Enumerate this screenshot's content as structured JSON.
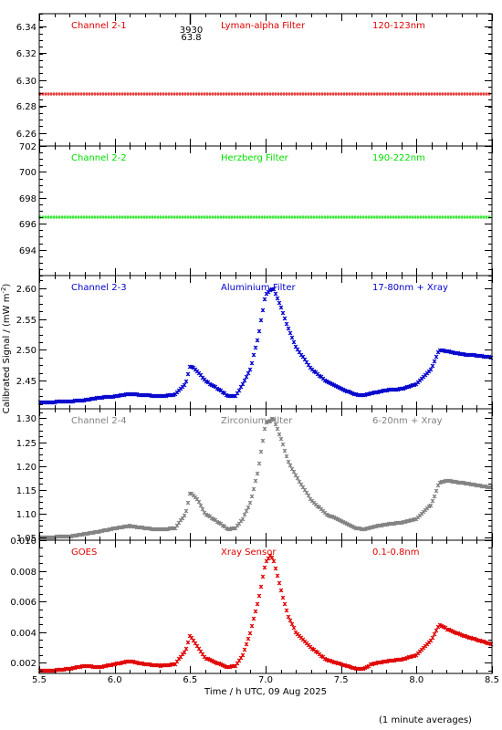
{
  "chart_data": {
    "type": "scatter",
    "xlabel": "Time / h UTC, 09 Aug 2025",
    "ylabel": "Calibrated Signal / (mW m",
    "ylabel_sup": "-2",
    "ylabel_close": ")",
    "footnote": "(1 minute averages)",
    "xlim": [
      5.5,
      8.5
    ],
    "xticks": [
      "5.5",
      "6.0",
      "6.5",
      "7.0",
      "7.5",
      "8.0",
      "8.5"
    ],
    "marker": "*",
    "marker_annotation": {
      "x": 6.5,
      "lines": [
        "3930",
        "63.8"
      ]
    },
    "panels": [
      {
        "channel": "Channel 2-1",
        "filter": "Lyman-alpha Filter",
        "band": "120-123nm",
        "color": "#e00000",
        "ylim": [
          6.25,
          6.35
        ],
        "yticks": [
          "6.26",
          "6.28",
          "6.30",
          "6.32",
          "6.34"
        ],
        "profile": "flat",
        "level": 6.289
      },
      {
        "channel": "Channel 2-2",
        "filter": "Herzberg Filter",
        "band": "190-222nm",
        "color": "#00e000",
        "ylim": [
          692,
          702
        ],
        "yticks": [
          "694",
          "696",
          "698",
          "700",
          "702"
        ],
        "profile": "flat",
        "level": 696.5
      },
      {
        "channel": "Channel 2-3",
        "filter": "Aluminium Filter",
        "band": "17-80nm + Xray",
        "color": "#0000cc",
        "ylim": [
          2.405,
          2.62
        ],
        "yticks": [
          "2.45",
          "2.50",
          "2.55",
          "2.60"
        ],
        "profile": "flare",
        "series": {
          "x": [
            5.5,
            5.7,
            5.8,
            5.9,
            6.0,
            6.1,
            6.2,
            6.3,
            6.4,
            6.47,
            6.5,
            6.55,
            6.6,
            6.7,
            6.75,
            6.8,
            6.85,
            6.9,
            6.95,
            7.0,
            7.05,
            7.1,
            7.15,
            7.2,
            7.3,
            7.4,
            7.5,
            7.6,
            7.65,
            7.7,
            7.8,
            7.9,
            8.0,
            8.1,
            8.15,
            8.2,
            8.3,
            8.4,
            8.5
          ],
          "y": [
            2.415,
            2.417,
            2.419,
            2.423,
            2.425,
            2.429,
            2.427,
            2.425,
            2.428,
            2.445,
            2.475,
            2.465,
            2.45,
            2.435,
            2.425,
            2.425,
            2.445,
            2.47,
            2.52,
            2.59,
            2.6,
            2.57,
            2.535,
            2.505,
            2.47,
            2.45,
            2.437,
            2.428,
            2.427,
            2.43,
            2.435,
            2.437,
            2.445,
            2.47,
            2.5,
            2.498,
            2.493,
            2.491,
            2.488
          ]
        }
      },
      {
        "channel": "Channel 2-4",
        "filter": "Zirconium Filter",
        "band": "6-20nm + Xray",
        "color": "#808080",
        "ylim": [
          1.045,
          1.32
        ],
        "yticks": [
          "1.05",
          "1.10",
          "1.15",
          "1.20",
          "1.25",
          "1.30"
        ],
        "profile": "flare",
        "series": {
          "x": [
            5.5,
            5.7,
            5.8,
            5.9,
            6.0,
            6.1,
            6.2,
            6.3,
            6.4,
            6.47,
            6.5,
            6.55,
            6.6,
            6.7,
            6.75,
            6.8,
            6.85,
            6.9,
            6.95,
            7.0,
            7.05,
            7.1,
            7.15,
            7.2,
            7.3,
            7.4,
            7.5,
            7.6,
            7.65,
            7.7,
            7.8,
            7.9,
            8.0,
            8.1,
            8.15,
            8.2,
            8.3,
            8.4,
            8.5
          ],
          "y": [
            1.05,
            1.053,
            1.058,
            1.063,
            1.07,
            1.075,
            1.07,
            1.067,
            1.07,
            1.1,
            1.145,
            1.13,
            1.1,
            1.08,
            1.068,
            1.07,
            1.09,
            1.125,
            1.19,
            1.29,
            1.3,
            1.26,
            1.21,
            1.18,
            1.13,
            1.1,
            1.085,
            1.07,
            1.068,
            1.072,
            1.078,
            1.082,
            1.09,
            1.12,
            1.165,
            1.17,
            1.165,
            1.16,
            1.155
          ]
        }
      },
      {
        "channel": "GOES",
        "filter": "Xray Sensor",
        "band": "0.1-0.8nm",
        "color": "#e00000",
        "ylim": [
          0.0013,
          0.01
        ],
        "yticks": [
          "0.002",
          "0.004",
          "0.006",
          "0.008",
          "0.010"
        ],
        "profile": "flare",
        "series": {
          "x": [
            5.5,
            5.6,
            5.7,
            5.8,
            5.9,
            6.0,
            6.1,
            6.2,
            6.3,
            6.4,
            6.47,
            6.5,
            6.55,
            6.6,
            6.7,
            6.75,
            6.8,
            6.85,
            6.9,
            6.95,
            7.0,
            7.03,
            7.05,
            7.1,
            7.15,
            7.2,
            7.3,
            7.4,
            7.5,
            7.6,
            7.65,
            7.7,
            7.8,
            7.9,
            8.0,
            8.1,
            8.15,
            8.2,
            8.3,
            8.4,
            8.5
          ],
          "y": [
            0.0015,
            0.0015,
            0.0016,
            0.0018,
            0.0017,
            0.0019,
            0.0021,
            0.0019,
            0.0018,
            0.0019,
            0.0028,
            0.0038,
            0.003,
            0.0023,
            0.0019,
            0.0017,
            0.0018,
            0.0025,
            0.004,
            0.006,
            0.0085,
            0.009,
            0.0088,
            0.0068,
            0.005,
            0.004,
            0.003,
            0.0022,
            0.0019,
            0.0016,
            0.0016,
            0.0019,
            0.0021,
            0.0022,
            0.0025,
            0.0035,
            0.0045,
            0.0042,
            0.0038,
            0.0035,
            0.0032
          ]
        }
      }
    ]
  }
}
